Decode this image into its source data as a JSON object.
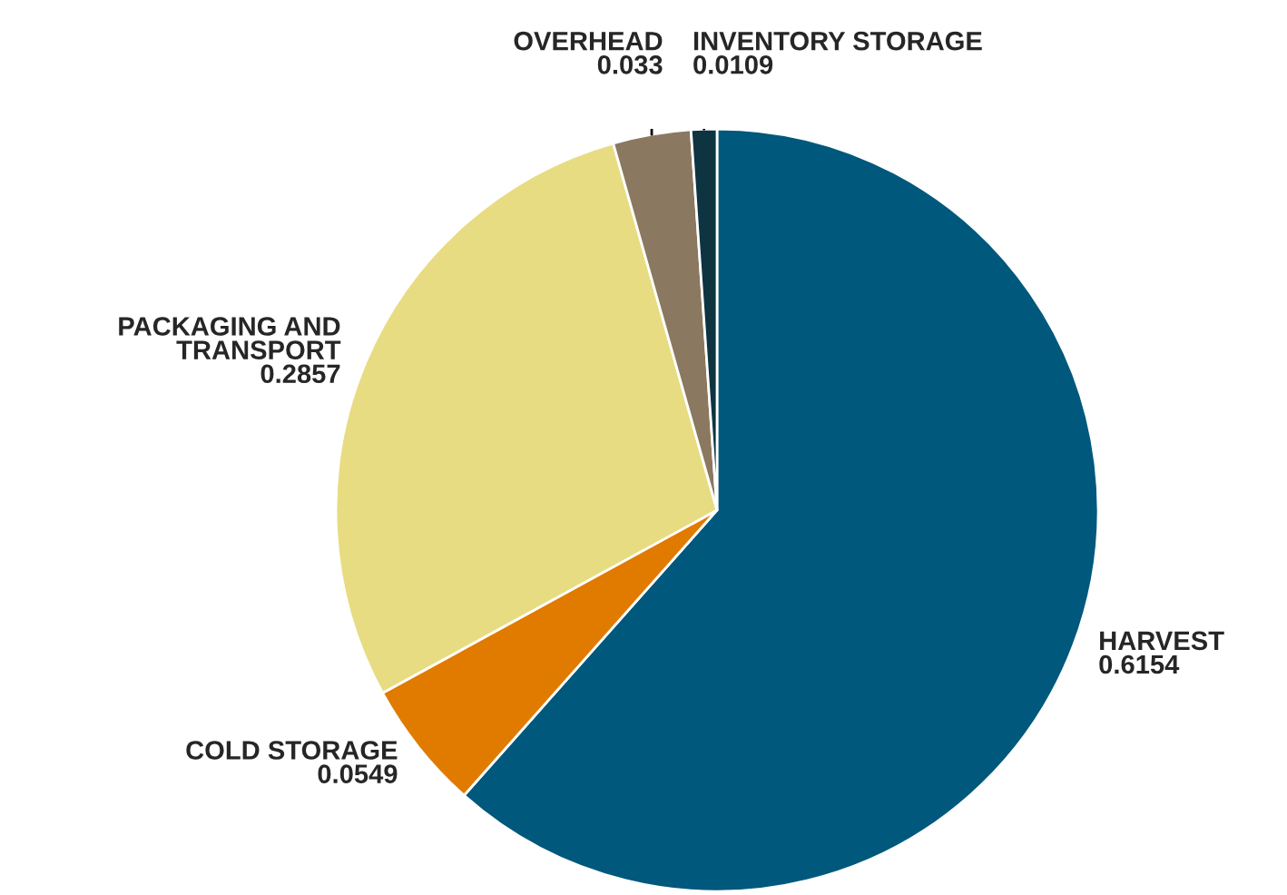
{
  "chart_data": {
    "type": "pie",
    "categories": [
      "HARVEST",
      "COLD STORAGE",
      "PACKAGING AND\nTRANSPORT",
      "OVERHEAD",
      "INVENTORY STORAGE"
    ],
    "values": [
      0.6154,
      0.0549,
      0.2857,
      0.033,
      0.0109
    ],
    "colors": [
      "#00587c",
      "#e07b00",
      "#e8dc82",
      "#8b7860",
      "#0d3440"
    ],
    "data_labels": true
  }
}
